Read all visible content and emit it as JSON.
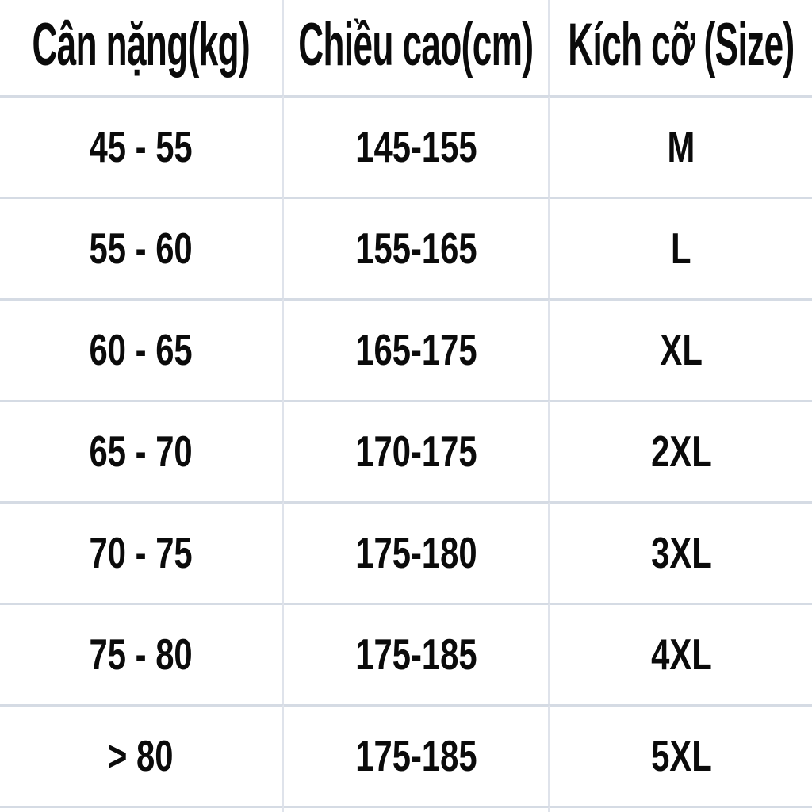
{
  "chart_data": {
    "type": "table",
    "title": "",
    "columns": [
      "Cân nặng(kg)",
      "Chiều cao(cm)",
      "Kích cỡ (Size)"
    ],
    "rows": [
      [
        "45 - 55",
        "145-155",
        "M"
      ],
      [
        "55 - 60",
        "155-165",
        "L"
      ],
      [
        "60 - 65",
        "165-175",
        "XL"
      ],
      [
        "65 - 70",
        "170-175",
        "2XL"
      ],
      [
        "70 - 75",
        "175-180",
        "3XL"
      ],
      [
        "75 - 80",
        "175-185",
        "4XL"
      ],
      [
        "> 80",
        "175-185",
        "5XL"
      ]
    ],
    "layout": {
      "grid": "on",
      "header_row": true,
      "partial_ninth_row_visible": true
    }
  },
  "table": {
    "colors": {
      "gridline_horizontal": "#d5dbe4",
      "gridline_vertical": "#dfe3eb",
      "text": "#0b0b0b",
      "background": "#ffffff"
    }
  }
}
